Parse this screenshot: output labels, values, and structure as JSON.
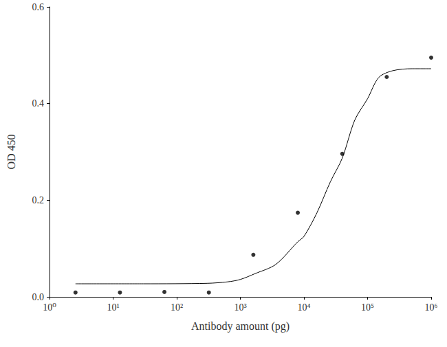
{
  "chart_data": {
    "type": "scatter",
    "x_label": "Antibody amount (pg)",
    "y_label": "OD 450",
    "log": "x",
    "grid": false,
    "xlim": [
      1,
      1000000
    ],
    "xticks": [
      {
        "value": 1,
        "label": "10⁰"
      },
      {
        "value": 10,
        "label": "10¹"
      },
      {
        "value": 100,
        "label": "10²"
      },
      {
        "value": 1000,
        "label": "10³"
      },
      {
        "value": 10000,
        "label": "10⁴"
      },
      {
        "value": 100000,
        "label": "10⁵"
      },
      {
        "value": 1000000,
        "label": "10⁶"
      }
    ],
    "ylim": [
      0,
      0.6
    ],
    "yticks": [
      {
        "value": 0,
        "label": "0.0"
      },
      0.2,
      0.4,
      0.6
    ],
    "series": [
      {
        "type": "scatter",
        "color": "#000000",
        "marker": "circle",
        "x": [
          2.56,
          12.8,
          64,
          320,
          1600,
          8000,
          40000,
          200000,
          1000000
        ],
        "values": [
          0.009,
          0.009,
          0.01,
          0.009,
          0.087,
          0.174,
          0.296,
          0.455,
          0.495
        ]
      },
      {
        "type": "line",
        "color": "#000000",
        "marker": "none",
        "line_style": "solid",
        "x": [
          2.56,
          30,
          300,
          630,
          1000,
          1700,
          3600,
          8000,
          10000,
          16000,
          26000,
          40000,
          63000,
          100000,
          150000,
          250000,
          500000,
          1000000
        ],
        "values": [
          0.027,
          0.027,
          0.028,
          0.031,
          0.036,
          0.048,
          0.067,
          0.114,
          0.125,
          0.174,
          0.238,
          0.287,
          0.366,
          0.41,
          0.454,
          0.468,
          0.472,
          0.472
        ]
      }
    ]
  }
}
